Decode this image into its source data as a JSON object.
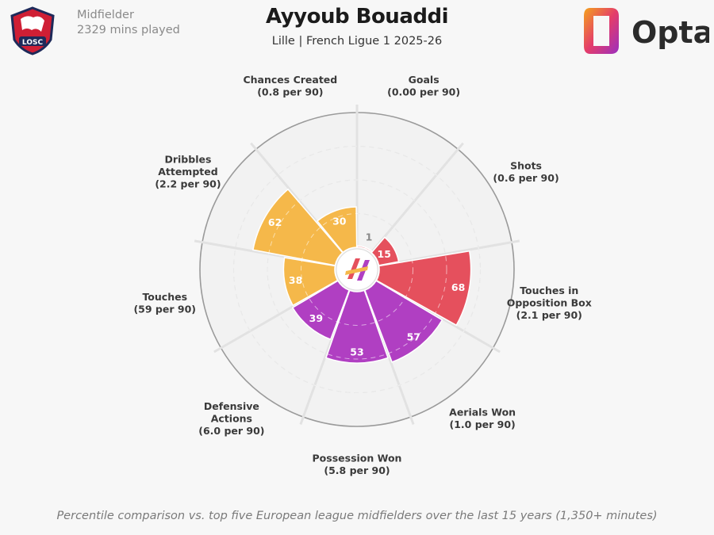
{
  "header": {
    "position": "Midfielder",
    "minutes": "2329 mins played",
    "player": "Ayyoub Bouaddi",
    "subtitle": "Lille | French Ligue 1 2025-26",
    "crest_text": "LOSC",
    "brand": "Opta"
  },
  "footnote": "Percentile comparison vs. top five European league midfielders over the last 15 years (1,350+ minutes)",
  "colors": {
    "attacking": "#e5505d",
    "possession": "#b03fc2",
    "passing": "#f5b84a",
    "grid": "#dcdcdc",
    "outer_ring": "#9a9a9a",
    "background": "#f7f7f7"
  },
  "chart_data": {
    "type": "polar-bar",
    "scale": [
      0,
      100
    ],
    "categories": [
      {
        "name": [
          "Goals",
          "(0.00 per 90)"
        ],
        "value": 1,
        "group": "attacking"
      },
      {
        "name": [
          "Shots",
          "(0.6 per 90)"
        ],
        "value": 15,
        "group": "attacking"
      },
      {
        "name": [
          "Touches in",
          "Opposition Box",
          "(2.1 per 90)"
        ],
        "value": 68,
        "group": "attacking"
      },
      {
        "name": [
          "Aerials Won",
          "(1.0 per 90)"
        ],
        "value": 57,
        "group": "possession"
      },
      {
        "name": [
          "Possession Won",
          "(5.8 per 90)"
        ],
        "value": 53,
        "group": "possession"
      },
      {
        "name": [
          "Defensive",
          "Actions",
          "(6.0 per 90)"
        ],
        "value": 39,
        "group": "possession"
      },
      {
        "name": [
          "Touches",
          "(59 per 90)"
        ],
        "value": 38,
        "group": "passing"
      },
      {
        "name": [
          "Dribbles",
          "Attempted",
          "(2.2 per 90)"
        ],
        "value": 62,
        "group": "passing"
      },
      {
        "name": [
          "Chances Created",
          "(0.8 per 90)"
        ],
        "value": 30,
        "group": "passing"
      }
    ]
  }
}
